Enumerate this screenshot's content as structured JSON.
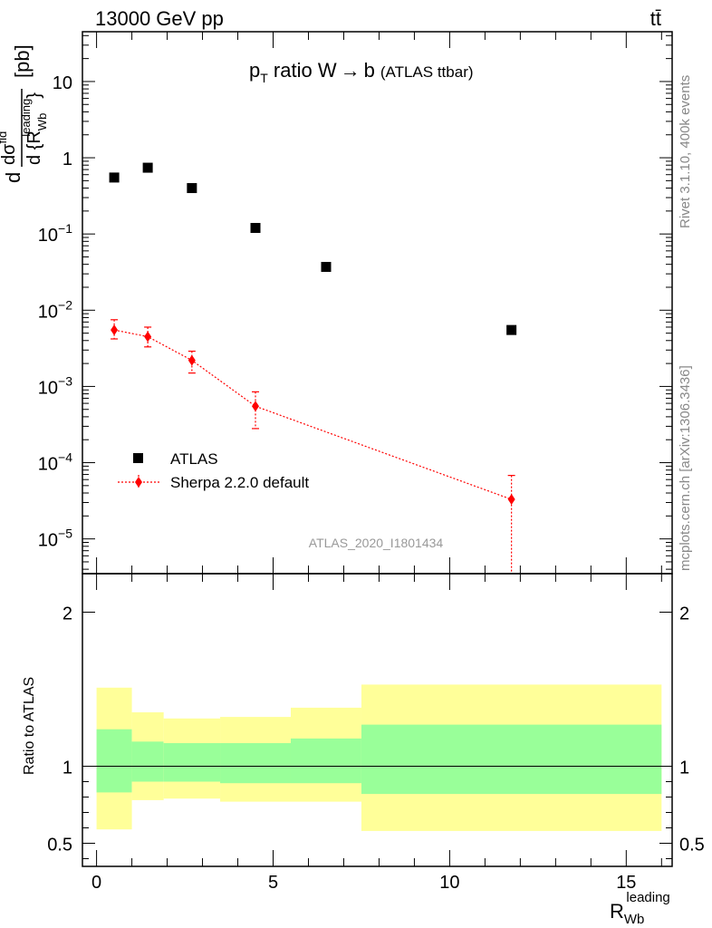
{
  "header": {
    "left": "13000 GeV pp",
    "right": "tt̄"
  },
  "side_labels": {
    "top": "Rivet 3.1.10,  400k events",
    "bottom": "mcplots.cern.ch [arXiv:1306.3436]"
  },
  "chart_data": [
    {
      "type": "scatter",
      "panel": "main",
      "title": "p_T ratio W → b (ATLAS ttbar)",
      "title_parts": {
        "p": "p",
        "sub": "T",
        "rest": " ratio W",
        "arrow": "→",
        "b": "b",
        "small": "(ATLAS ttbar)"
      },
      "ylabel": "dσ^fid / d{R_Wb^leading} [pb]",
      "ylabel_parts": {
        "d": "d",
        "num": "dσ",
        "num_sup": "fid",
        "den": "d {R",
        "den_sub": "Wb",
        "den_sup": "leading",
        "den_close": "}",
        "unit": "[pb]"
      },
      "yscale": "log",
      "ylim": [
        3.5e-06,
        45
      ],
      "xlim": [
        -0.4,
        16.3
      ],
      "yticks": [
        {
          "value": 10,
          "mant": "10",
          "exp": ""
        },
        {
          "value": 1,
          "mant": "1",
          "exp": ""
        },
        {
          "value": 0.1,
          "mant": "10",
          "exp": "−1"
        },
        {
          "value": 0.01,
          "mant": "10",
          "exp": "−2"
        },
        {
          "value": 0.001,
          "mant": "10",
          "exp": "−3"
        },
        {
          "value": 0.0001,
          "mant": "10",
          "exp": "−4"
        },
        {
          "value": 1e-05,
          "mant": "10",
          "exp": "−5"
        }
      ],
      "watermark": "ATLAS_2020_I1801434",
      "legend_position": "bottom-left",
      "series": [
        {
          "name": "ATLAS",
          "marker": "square",
          "color": "#000000",
          "x": [
            0.5,
            1.45,
            2.7,
            4.5,
            6.5,
            11.75
          ],
          "y": [
            0.55,
            0.74,
            0.4,
            0.12,
            0.037,
            0.0055
          ]
        },
        {
          "name": "Sherpa 2.2.0 default",
          "marker": "diamond",
          "color": "#ff0000",
          "line": "dotted",
          "x": [
            0.5,
            1.45,
            2.7,
            4.5,
            11.75
          ],
          "y": [
            0.0055,
            0.0045,
            0.0022,
            0.00055,
            3.3e-05
          ],
          "err_up": [
            0.0075,
            0.006,
            0.0029,
            0.00085,
            6.8e-05
          ],
          "err_down": [
            0.0042,
            0.0033,
            0.0015,
            0.00028,
            1e-07
          ]
        }
      ]
    },
    {
      "type": "area",
      "panel": "ratio",
      "ylabel": "Ratio to ATLAS",
      "xlabel": "R_Wb^leading",
      "xlabel_parts": {
        "base": "R",
        "sub": "Wb",
        "sup": "leading"
      },
      "xlim": [
        -0.4,
        16.3
      ],
      "ylim": [
        0.35,
        2.25
      ],
      "xticks": [
        0,
        5,
        10,
        15
      ],
      "yticks": [
        0.5,
        1,
        2
      ],
      "bins": [
        {
          "x0": 0.0,
          "x1": 1.0,
          "inner": [
            0.83,
            1.24
          ],
          "outer": [
            0.59,
            1.51
          ]
        },
        {
          "x0": 1.0,
          "x1": 1.9,
          "inner": [
            0.9,
            1.16
          ],
          "outer": [
            0.78,
            1.35
          ]
        },
        {
          "x0": 1.9,
          "x1": 3.5,
          "inner": [
            0.9,
            1.15
          ],
          "outer": [
            0.79,
            1.31
          ]
        },
        {
          "x0": 3.5,
          "x1": 5.5,
          "inner": [
            0.89,
            1.15
          ],
          "outer": [
            0.77,
            1.32
          ]
        },
        {
          "x0": 5.5,
          "x1": 7.5,
          "inner": [
            0.89,
            1.18
          ],
          "outer": [
            0.77,
            1.38
          ]
        },
        {
          "x0": 7.5,
          "x1": 16.0,
          "inner": [
            0.82,
            1.27
          ],
          "outer": [
            0.58,
            1.53
          ]
        }
      ],
      "colors": {
        "inner": "#99ff99",
        "outer": "#ffff99"
      },
      "reference_line": 1
    }
  ]
}
